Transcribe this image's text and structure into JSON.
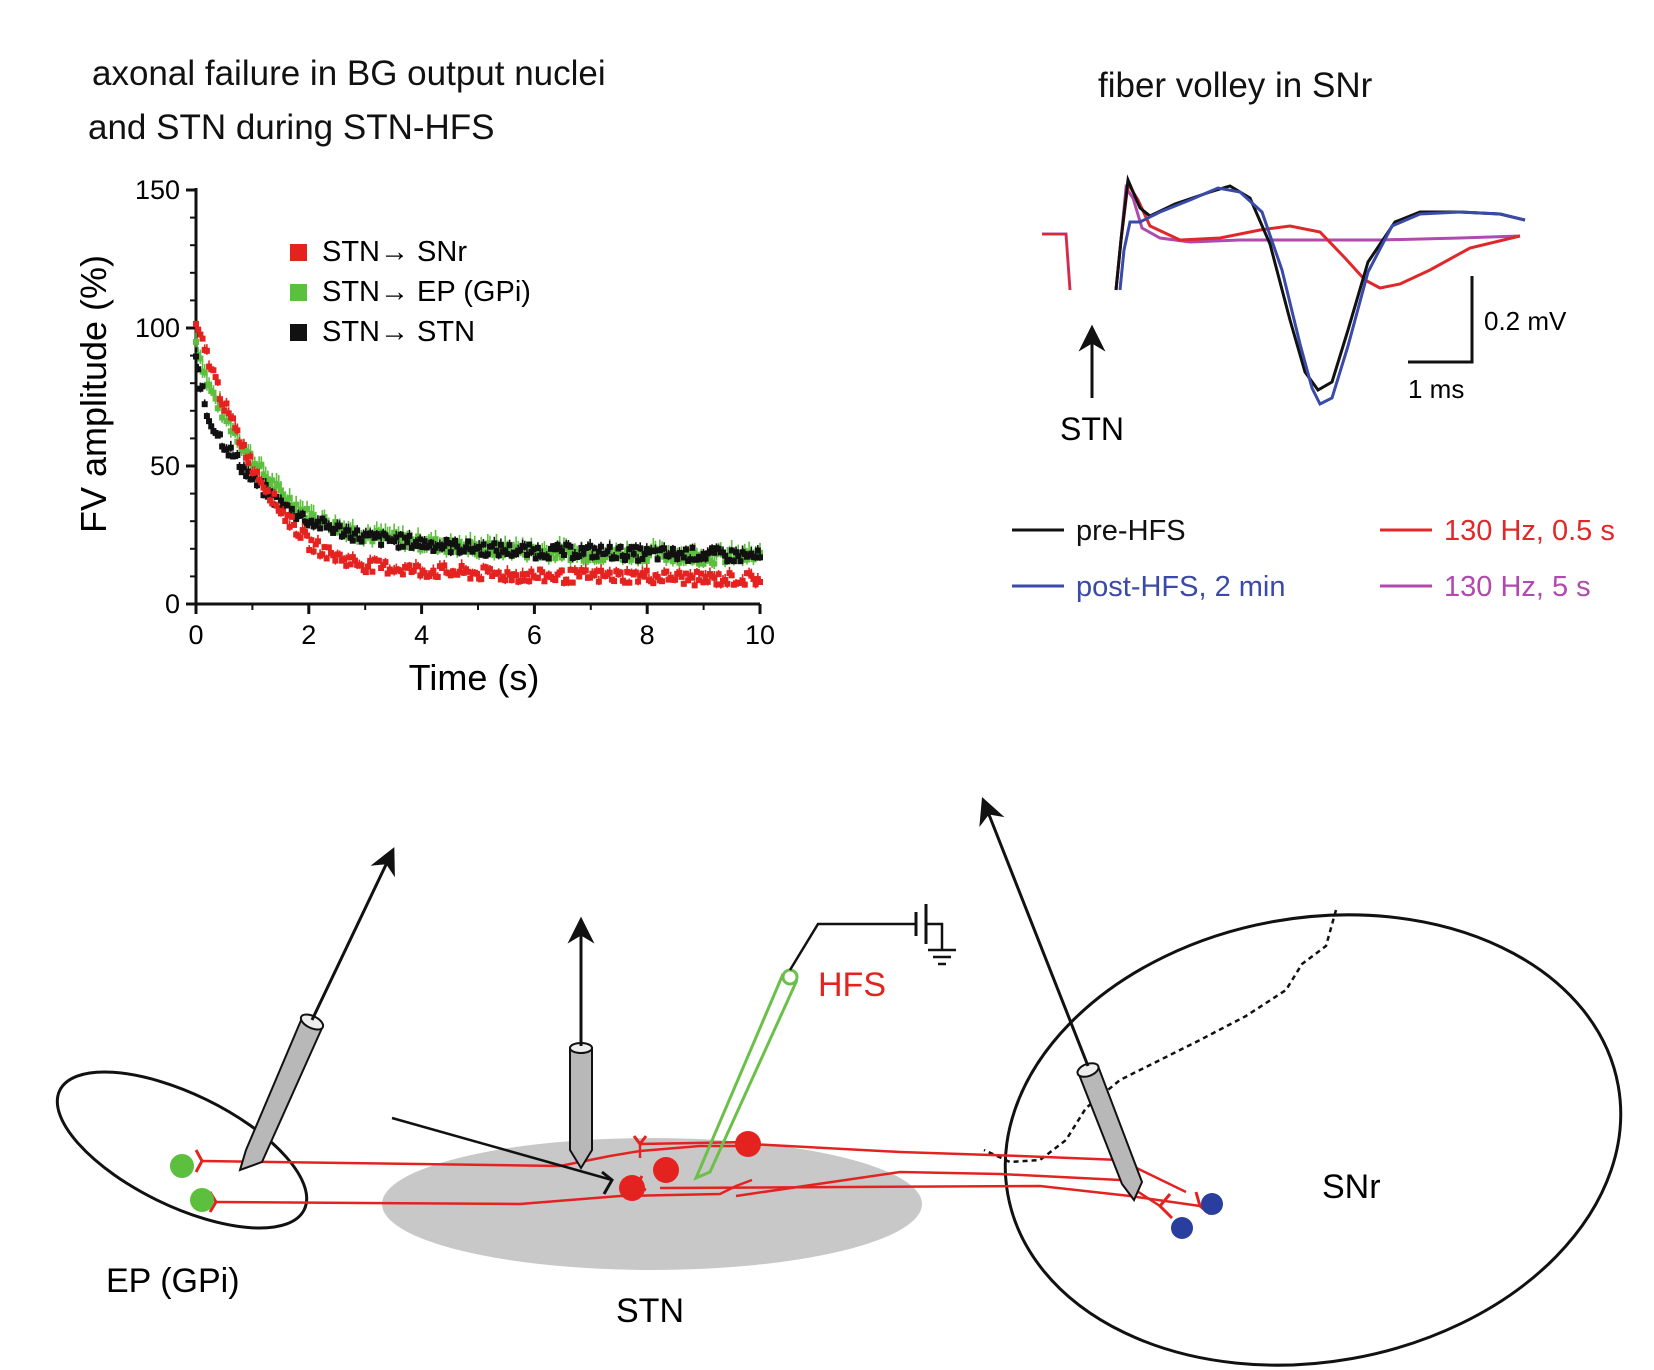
{
  "panel_a": {
    "title_line1": "axonal failure in BG output nuclei",
    "title_line2": "and STN during STN-HFS"
  },
  "panel_b": {
    "title": "fiber volley in SNr",
    "stim_label": "STN",
    "scale_bar_v": "0.2 mV",
    "scale_bar_t": "1 ms",
    "legend": [
      {
        "label": "pre-HFS",
        "color": "#111111"
      },
      {
        "label": "post-HFS, 2 min",
        "color": "#3a4aa8"
      },
      {
        "label": "130 Hz, 0.5 s",
        "color": "#e0282a"
      },
      {
        "label": "130 Hz, 5 s",
        "color": "#b04aae"
      }
    ]
  },
  "panel_c": {
    "labels": {
      "ep": "EP (GPi)",
      "stn": "STN",
      "snr": "SNr",
      "hfs": "HFS"
    },
    "colors": {
      "axon": "#e42320",
      "ep_cell": "#5cbf3e",
      "snr_cell": "#2a3ea0",
      "hfs_electrode": "#6cc04a"
    }
  },
  "chart_data": {
    "type": "scatter",
    "title": "axonal failure in BG output nuclei and STN during STN-HFS",
    "xlabel": "Time (s)",
    "ylabel": "FV amplitude (%)",
    "xlim": [
      0,
      10
    ],
    "ylim": [
      0,
      150
    ],
    "xticks": [
      0,
      2,
      4,
      6,
      8,
      10
    ],
    "yticks": [
      0,
      50,
      100,
      150
    ],
    "legend_position": "top-right",
    "series": [
      {
        "name": "STN→ SNr",
        "color": "#e42320",
        "x": [
          0,
          0.2,
          0.5,
          1,
          1.5,
          2,
          2.5,
          3,
          4,
          5,
          6,
          7,
          8,
          9,
          10
        ],
        "y": [
          100,
          90,
          72,
          50,
          34,
          22,
          17,
          14,
          12,
          11,
          10,
          10,
          10,
          9,
          9
        ]
      },
      {
        "name": "STN→ EP (GPi)",
        "color": "#5cbf3e",
        "x": [
          0,
          0.2,
          0.5,
          1,
          1.5,
          2,
          2.5,
          3,
          4,
          5,
          6,
          7,
          8,
          9,
          10
        ],
        "y": [
          95,
          80,
          68,
          52,
          40,
          32,
          28,
          25,
          22,
          20,
          19,
          18,
          18,
          17,
          17
        ]
      },
      {
        "name": "STN→ STN",
        "color": "#111111",
        "x": [
          0,
          0.2,
          0.5,
          1,
          1.5,
          2,
          2.5,
          3,
          4,
          5,
          6,
          7,
          8,
          9,
          10
        ],
        "y": [
          88,
          68,
          58,
          45,
          36,
          30,
          27,
          24,
          22,
          20,
          19,
          19,
          18,
          18,
          17
        ]
      }
    ]
  }
}
